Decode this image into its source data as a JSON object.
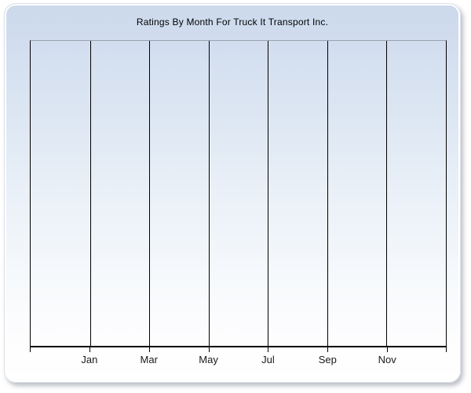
{
  "window": {
    "background_color": "#ffffff"
  },
  "panel": {
    "gradient_top_color": "#cbd9ec",
    "gradient_bottom_color": "#ffffff",
    "border_color": "#dde1e7",
    "shadow_color": "rgba(104,114,129,0.45)"
  },
  "chart_data": {
    "type": "line",
    "title": "Ratings By Month For Truck It Transport Inc.",
    "x_tick_labels": [
      "Jan",
      "Mar",
      "May",
      "Jul",
      "Sep",
      "Nov"
    ],
    "x_intervals": 7,
    "series": [],
    "y_axis_labels_visible": false,
    "grid": "vertical",
    "legend": "none",
    "colors": {
      "gridline": "#000000",
      "axis": "#000000",
      "plot_top_border": "#9aa2ad",
      "title_text": "#000000",
      "tick_label_text": "#1a1a1a"
    }
  }
}
